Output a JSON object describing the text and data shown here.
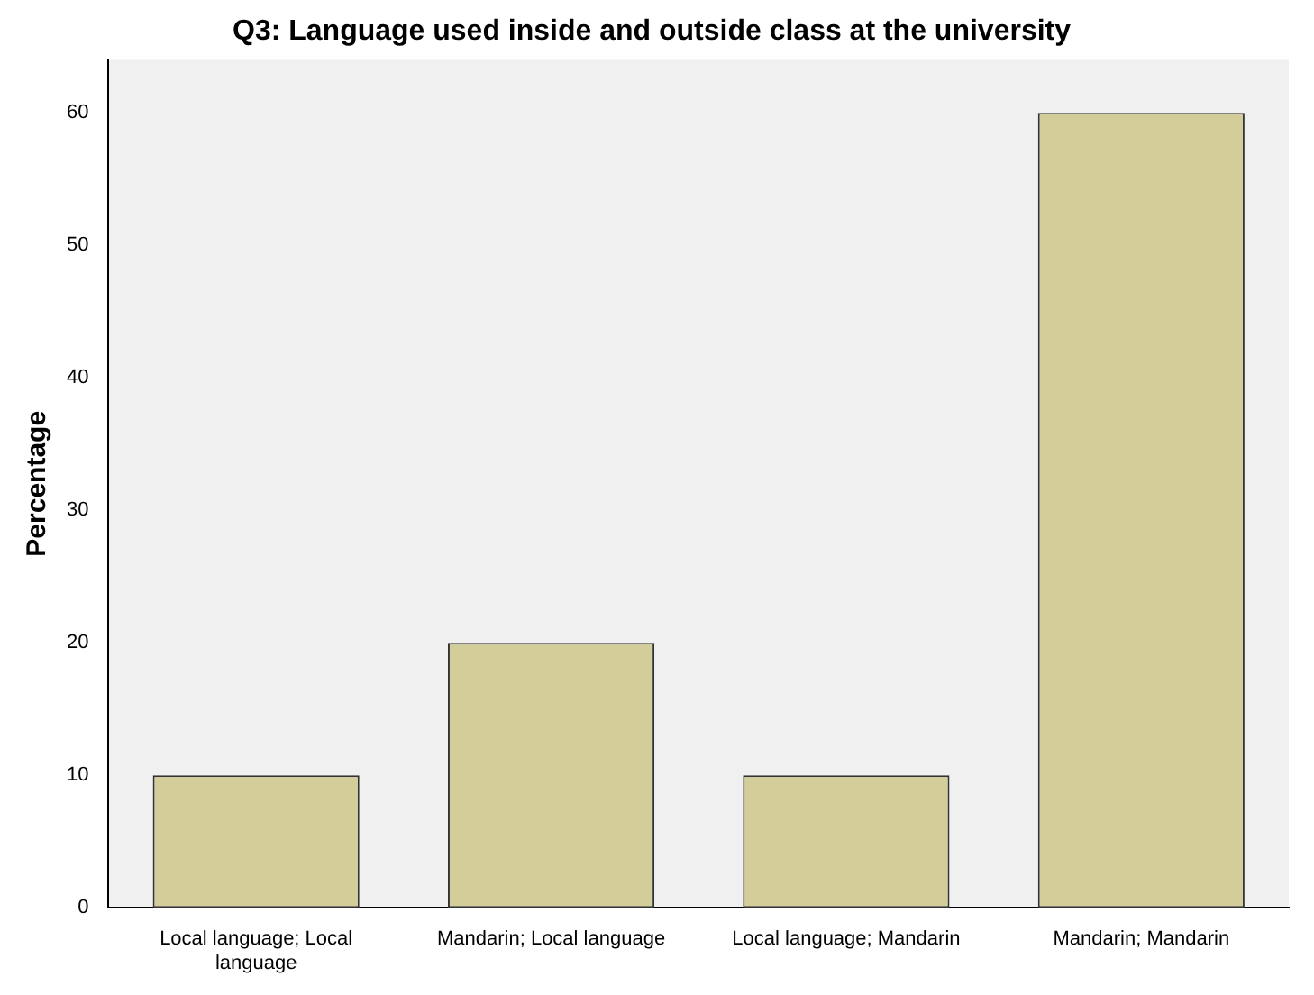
{
  "chart_data": {
    "type": "bar",
    "title": "Q3: Language used inside and outside class at the university",
    "ylabel": "Percentage",
    "categories": [
      "Local language; Local language",
      "Mandarin; Local language",
      "Local language; Mandarin",
      "Mandarin; Mandarin"
    ],
    "values": [
      10,
      20,
      10,
      60
    ],
    "color": "#d3ce99",
    "ylim": [
      0,
      64
    ],
    "yticks": [
      0,
      10,
      20,
      30,
      40,
      50,
      60
    ],
    "grid": false,
    "legend": false
  }
}
